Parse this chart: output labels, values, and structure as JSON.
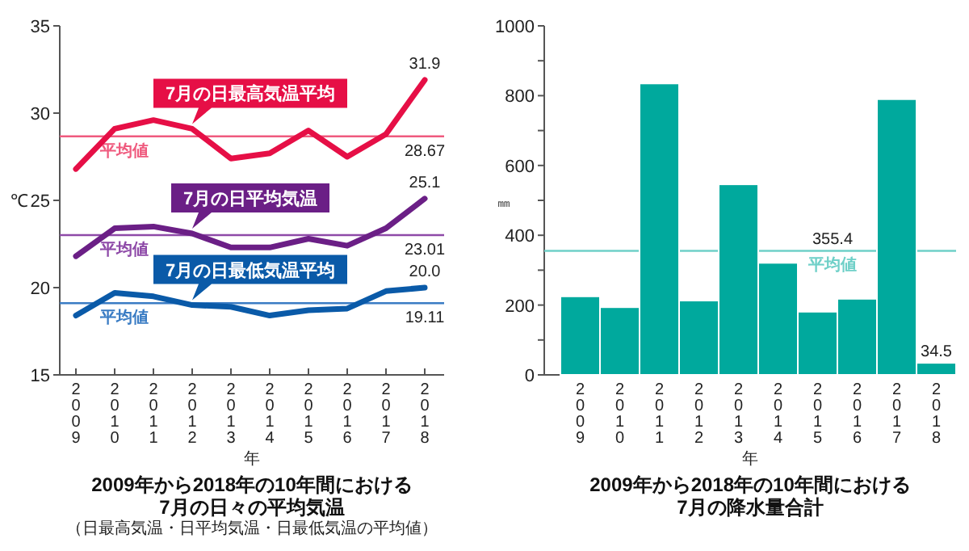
{
  "chart_data": [
    {
      "type": "line",
      "title": "2009年から2018年の10年間における\n7月の日々の平均気温",
      "xlabel": "年",
      "ylabel": "℃",
      "annotations": [
        "（日最高気温・日平均気温・日最低気温の平均値）",
        {
          "text": "28.67",
          "y": 28.67
        },
        {
          "text": "23.01",
          "y": 23.01
        },
        {
          "text": "19.11",
          "y": 19.11
        }
      ],
      "categories": [
        "2009",
        "2010",
        "2011",
        "2012",
        "2013",
        "2014",
        "2015",
        "2016",
        "2017",
        "2018"
      ],
      "series": [
        {
          "name": "7月の日最高気温平均",
          "color": "#e60f46",
          "values": [
            26.8,
            29.1,
            29.6,
            29.1,
            27.4,
            27.7,
            29.0,
            27.5,
            28.8,
            31.9
          ],
          "value_labels": [
            null,
            null,
            null,
            null,
            null,
            null,
            null,
            null,
            null,
            "31.9"
          ]
        },
        {
          "name": "7月の日平均気温",
          "color": "#6b1f86",
          "values": [
            21.8,
            23.4,
            23.5,
            23.1,
            22.3,
            22.3,
            22.8,
            22.4,
            23.4,
            25.1
          ],
          "value_labels": [
            null,
            null,
            null,
            null,
            null,
            null,
            null,
            null,
            null,
            "25.1"
          ]
        },
        {
          "name": "7月の日最低気温平均",
          "color": "#0a5aa8",
          "values": [
            18.4,
            19.7,
            19.5,
            19.0,
            18.9,
            18.4,
            18.7,
            18.8,
            19.8,
            20.0
          ],
          "value_labels": [
            null,
            null,
            null,
            null,
            null,
            null,
            null,
            null,
            null,
            "20.0"
          ]
        }
      ],
      "ylim": [
        15,
        35
      ],
      "yticks": [
        15,
        20,
        25,
        30,
        35
      ],
      "ref_lines": [
        {
          "axis": "y",
          "value": 28.67,
          "label": "平均値",
          "color": "#ef5a7e"
        },
        {
          "axis": "y",
          "value": 23.01,
          "label": "平均値",
          "color": "#8e4aa8"
        },
        {
          "axis": "y",
          "value": 19.11,
          "label": "平均値",
          "color": "#3a7cc4"
        }
      ],
      "grid": false,
      "legend": false,
      "marker": "none",
      "line_style": "solid"
    },
    {
      "type": "bar",
      "title": "2009年から2018年の10年間における\n7月の降水量合計",
      "xlabel": "年",
      "ylabel": "㎜",
      "annotations": [
        {
          "text": "355.4",
          "y": 355.4
        }
      ],
      "categories": [
        "2009",
        "2010",
        "2011",
        "2012",
        "2013",
        "2014",
        "2015",
        "2016",
        "2017",
        "2018"
      ],
      "values": [
        225,
        194,
        835,
        213,
        546,
        321,
        181,
        218,
        790,
        34.5
      ],
      "value_labels": [
        null,
        null,
        null,
        null,
        null,
        null,
        null,
        null,
        null,
        "34.5"
      ],
      "color": "#00a99d",
      "ylim": [
        0,
        1000
      ],
      "yticks": [
        0,
        {
          "value": 100,
          "label": null
        },
        200,
        {
          "value": 300,
          "label": null
        },
        400,
        {
          "value": 500,
          "label": null
        },
        600,
        {
          "value": 700,
          "label": null
        },
        800,
        {
          "value": 900,
          "label": null
        },
        1000
      ],
      "ref_lines": [
        {
          "axis": "y",
          "value": 355.4,
          "label": "平均値",
          "color": "#6fd0c8"
        }
      ],
      "grid": false,
      "legend": false
    }
  ]
}
